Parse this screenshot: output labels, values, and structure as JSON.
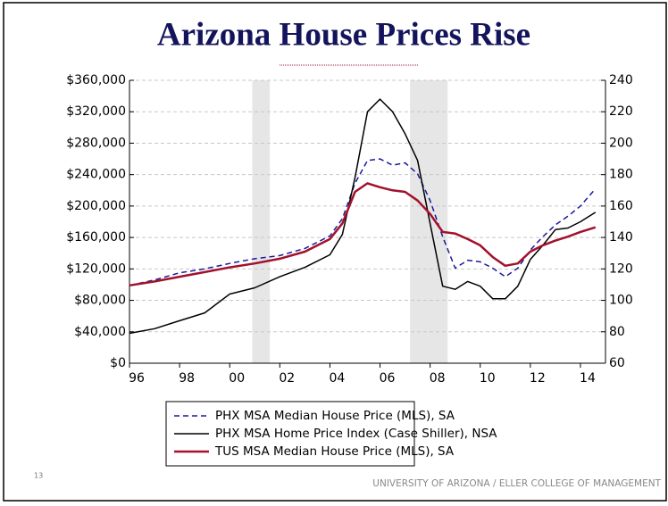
{
  "chart_data": {
    "type": "line",
    "title": "Arizona House Prices Rise",
    "footer": "UNIVERSITY OF ARIZONA / ELLER COLLEGE OF MANAGEMENT",
    "slide_number": "13",
    "x": [
      1996,
      1997,
      1998,
      1999,
      2000,
      2001,
      2002,
      2003,
      2004,
      2004.5,
      2005,
      2005.5,
      2006,
      2006.5,
      2007,
      2007.5,
      2008,
      2008.5,
      2009,
      2009.5,
      2010,
      2010.5,
      2011,
      2011.5,
      2012,
      2012.5,
      2013,
      2013.5,
      2014,
      2014.6
    ],
    "xlim": [
      1996,
      2015
    ],
    "xticks": [
      {
        "value": 1996,
        "label": "96"
      },
      {
        "value": 1998,
        "label": "98"
      },
      {
        "value": 2000,
        "label": "00"
      },
      {
        "value": 2002,
        "label": "02"
      },
      {
        "value": 2004,
        "label": "04"
      },
      {
        "value": 2006,
        "label": "06"
      },
      {
        "value": 2008,
        "label": "08"
      },
      {
        "value": 2010,
        "label": "10"
      },
      {
        "value": 2012,
        "label": "12"
      },
      {
        "value": 2014,
        "label": "14"
      }
    ],
    "ylim": [
      0,
      360000
    ],
    "yticks": [
      {
        "value": 0,
        "label": "$0"
      },
      {
        "value": 40000,
        "label": "$40,000"
      },
      {
        "value": 80000,
        "label": "$80,000"
      },
      {
        "value": 120000,
        "label": "$120,000"
      },
      {
        "value": 160000,
        "label": "$160,000"
      },
      {
        "value": 200000,
        "label": "$200,000"
      },
      {
        "value": 240000,
        "label": "$240,000"
      },
      {
        "value": 280000,
        "label": "$280,000"
      },
      {
        "value": 320000,
        "label": "$320,000"
      },
      {
        "value": 360000,
        "label": "$360,000"
      }
    ],
    "y2lim": [
      60,
      240
    ],
    "y2ticks": [
      60,
      80,
      100,
      120,
      140,
      160,
      180,
      200,
      220,
      240
    ],
    "grid": true,
    "shaded_periods": [
      [
        2000.9,
        2001.6
      ],
      [
        2007.2,
        2008.7
      ]
    ],
    "series": [
      {
        "name": "PHX MSA Median House Price (MLS), SA",
        "color": "#1a1a9c",
        "dash": true,
        "values": [
          99000,
          106000,
          115000,
          120000,
          127000,
          133000,
          137000,
          146000,
          162000,
          184000,
          229000,
          258000,
          260000,
          252000,
          255000,
          241000,
          207000,
          161000,
          121000,
          131000,
          129000,
          121000,
          110000,
          121000,
          144000,
          161000,
          176000,
          187000,
          200000,
          222000
        ]
      },
      {
        "name": "PHX MSA Home Price Index (Case Shiller), NSA",
        "color": "#000000",
        "axis": "y2",
        "values": [
          79,
          82,
          87,
          92,
          104,
          108,
          115,
          121,
          129,
          142,
          178,
          220,
          228,
          220,
          206,
          189,
          149,
          109,
          107,
          112,
          109,
          101,
          101,
          109,
          126,
          135,
          145,
          146,
          150,
          156
        ]
      },
      {
        "name": "TUS MSA Median House Price (MLS), SA",
        "color": "#a3102c",
        "width": 2.5,
        "values": [
          99000,
          104000,
          110000,
          116000,
          122000,
          127000,
          133000,
          142000,
          158000,
          178000,
          218000,
          229000,
          224000,
          220000,
          218000,
          207000,
          190000,
          167000,
          165000,
          158000,
          150000,
          135000,
          124000,
          127000,
          142000,
          150000,
          156000,
          161000,
          167000,
          173000
        ]
      }
    ]
  }
}
